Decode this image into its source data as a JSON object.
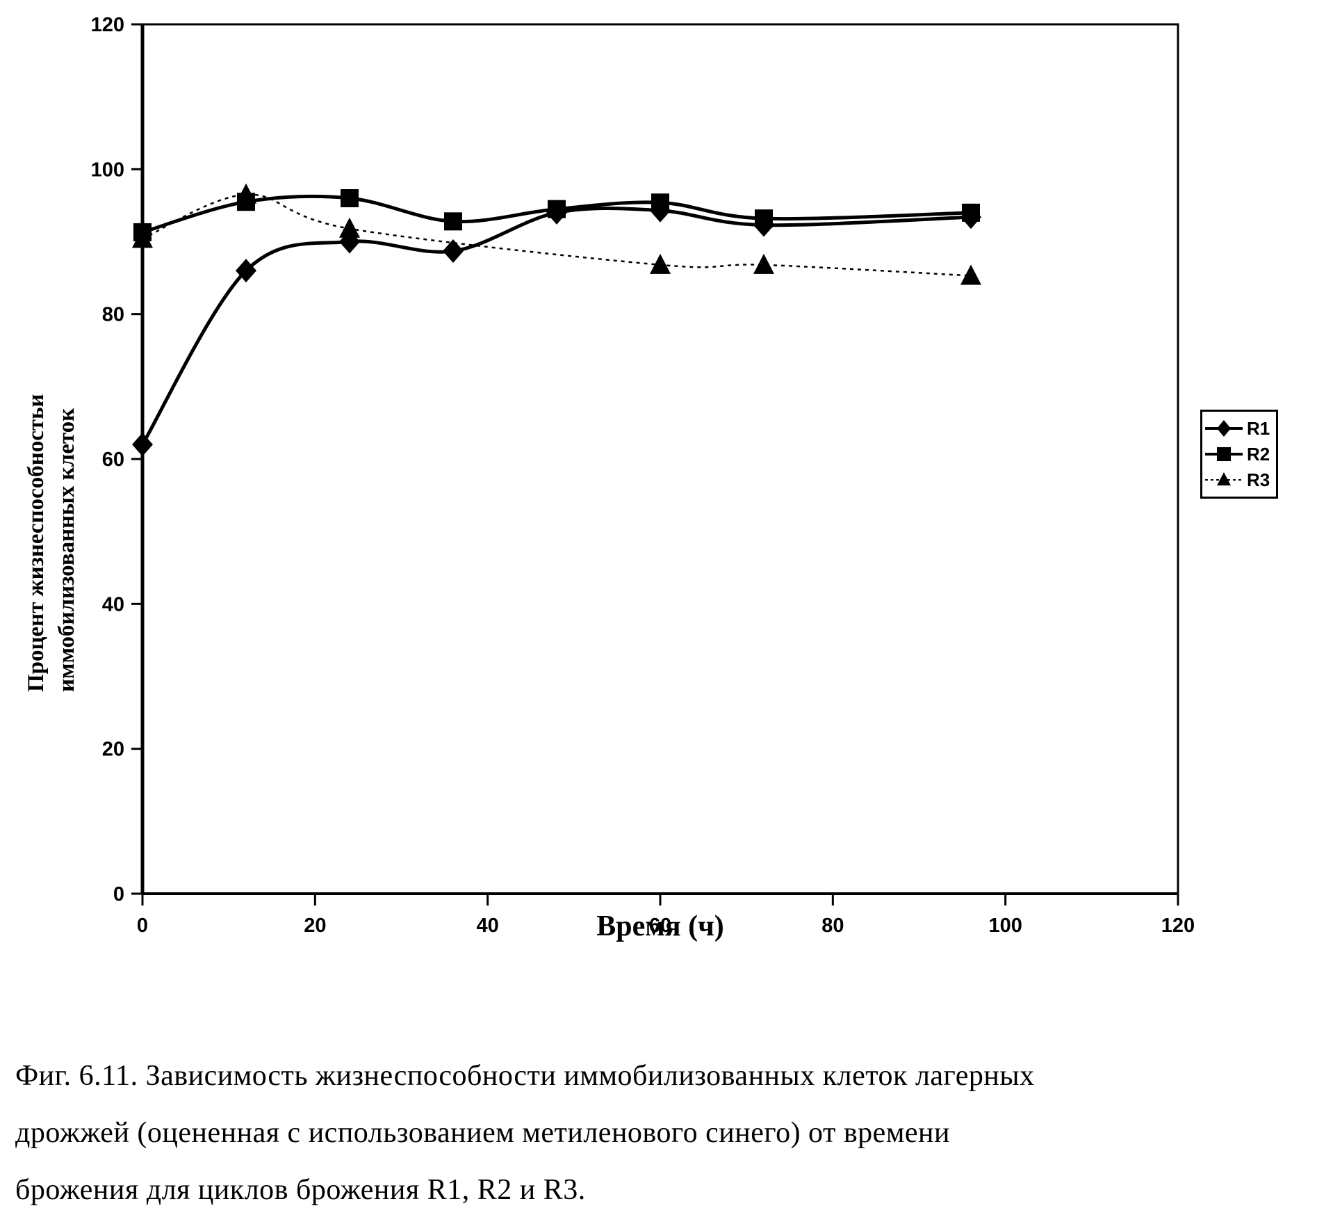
{
  "figure": {
    "caption_lines": [
      "Фиг. 6.11. Зависимость жизнеспособности иммобилизованных клеток лагерных",
      "дрожжей (оцененная с использованием метиленового синего) от времени",
      "брожения для циклов брожения R1, R2 и R3."
    ]
  },
  "chart_data": {
    "type": "line",
    "title": "",
    "xlabel": "Время (ч)",
    "ylabel_lines": [
      "Процент жизнеспособностьи",
      "иммобилизованных клеток"
    ],
    "xlim": [
      0,
      120
    ],
    "ylim": [
      0,
      120
    ],
    "x_ticks": [
      0,
      20,
      40,
      60,
      80,
      100,
      120
    ],
    "y_ticks": [
      0,
      20,
      40,
      60,
      80,
      100,
      120
    ],
    "grid": false,
    "legend_position": "right",
    "axis_color": "#000000",
    "background_color": "#ffffff",
    "series": [
      {
        "name": "R1",
        "marker": "diamond",
        "line": "solid-thick",
        "x": [
          0,
          12,
          24,
          36,
          48,
          60,
          72,
          96
        ],
        "values": [
          62,
          86,
          90,
          88.7,
          94,
          94.3,
          92.3,
          93.4
        ]
      },
      {
        "name": "R2",
        "marker": "square",
        "line": "solid-thick",
        "x": [
          0,
          12,
          24,
          36,
          48,
          60,
          72,
          96
        ],
        "values": [
          91.3,
          95.5,
          96,
          92.8,
          94.5,
          95.4,
          93.2,
          94
        ]
      },
      {
        "name": "R3",
        "marker": "triangle",
        "line": "dashed-thin",
        "x": [
          0,
          12,
          24,
          60,
          72,
          96
        ],
        "values": [
          90.4,
          96.5,
          91.8,
          86.8,
          86.8,
          85.3
        ]
      }
    ]
  }
}
